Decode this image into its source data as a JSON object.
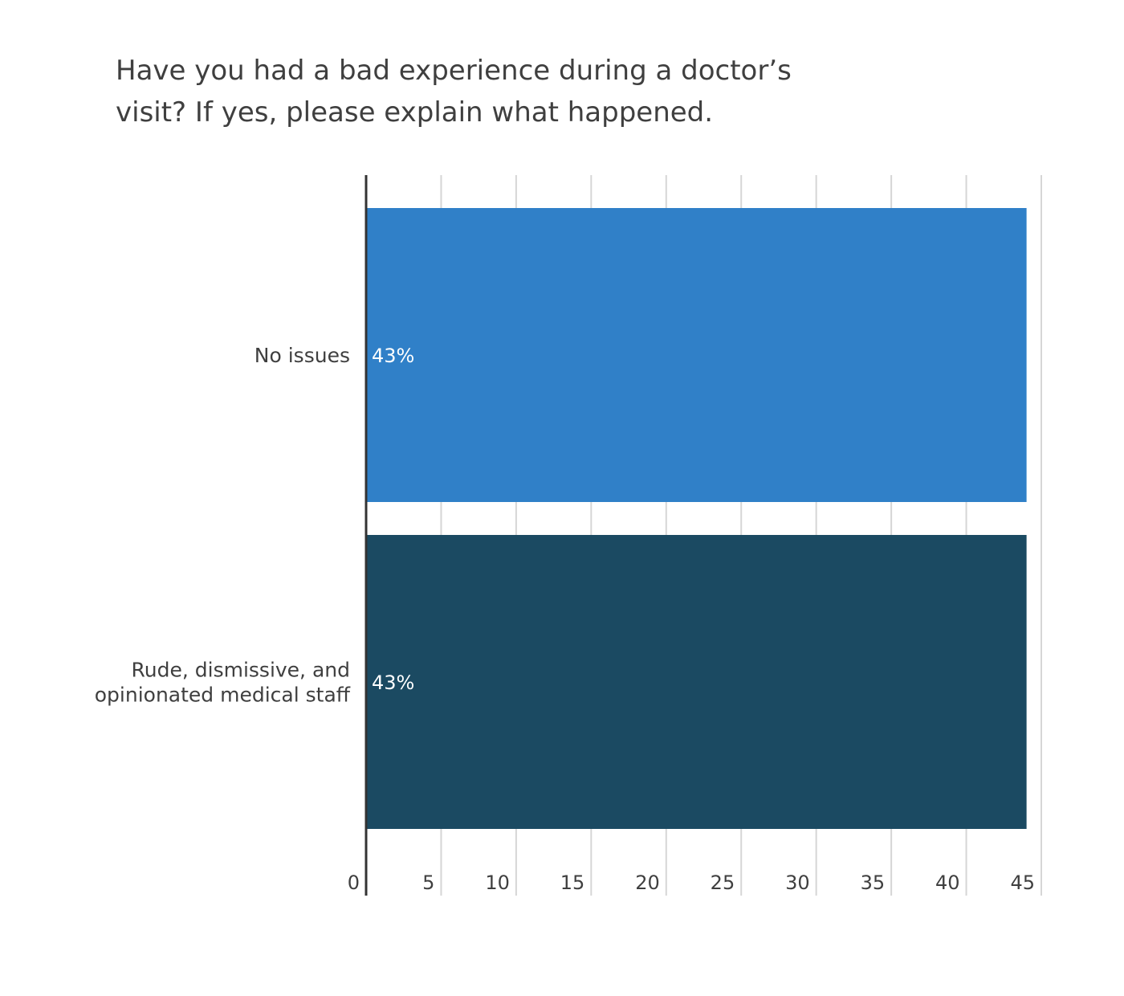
{
  "chart_data": {
    "type": "bar",
    "orientation": "horizontal",
    "title_lines": [
      "Have you had a bad experience during a doctor’s",
      "visit? If yes, please explain what happened."
    ],
    "categories": [
      "No issues",
      "Rude, dismissive, and opinionated medical staff"
    ],
    "category_label_lines": [
      [
        "No issues"
      ],
      [
        "Rude, dismissive, and",
        "opinionated medical staff"
      ]
    ],
    "values": [
      43,
      43
    ],
    "data_labels": [
      "43%",
      "43%"
    ],
    "bar_colors": [
      "#3080c8",
      "#1b4a62"
    ],
    "xlim": [
      0,
      45
    ],
    "xticks": [
      0,
      5,
      10,
      15,
      20,
      25,
      30,
      35,
      40,
      45
    ],
    "grid": true,
    "legend": "none"
  }
}
